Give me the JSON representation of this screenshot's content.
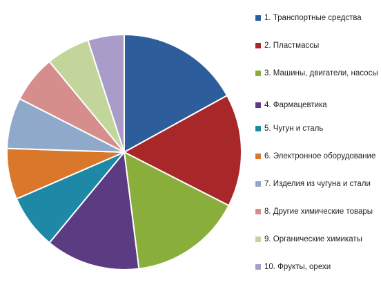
{
  "chart_data": {
    "type": "pie",
    "categories": [
      "1. Транспортные средства",
      "2. Пластмассы",
      "3. Машины, двигатели, насосы",
      "4. Фармацевтика",
      "5. Чугун и сталь",
      "6. Электронное оборудование",
      "7. Изделия из чугуна и стали",
      "8. Другие химические товары",
      "9. Органические химикаты",
      "10. Фрукты, орехи"
    ],
    "values": [
      17.0,
      15.5,
      15.5,
      13.0,
      7.5,
      7.0,
      7.0,
      6.5,
      6.0,
      5.0
    ],
    "colors": [
      "#2e5d9c",
      "#a8282a",
      "#8aae3b",
      "#5b3b82",
      "#1e89a6",
      "#d9772a",
      "#8fa9cb",
      "#d68e8c",
      "#c2d59a",
      "#aa9cc8"
    ],
    "legend_position": "right"
  }
}
